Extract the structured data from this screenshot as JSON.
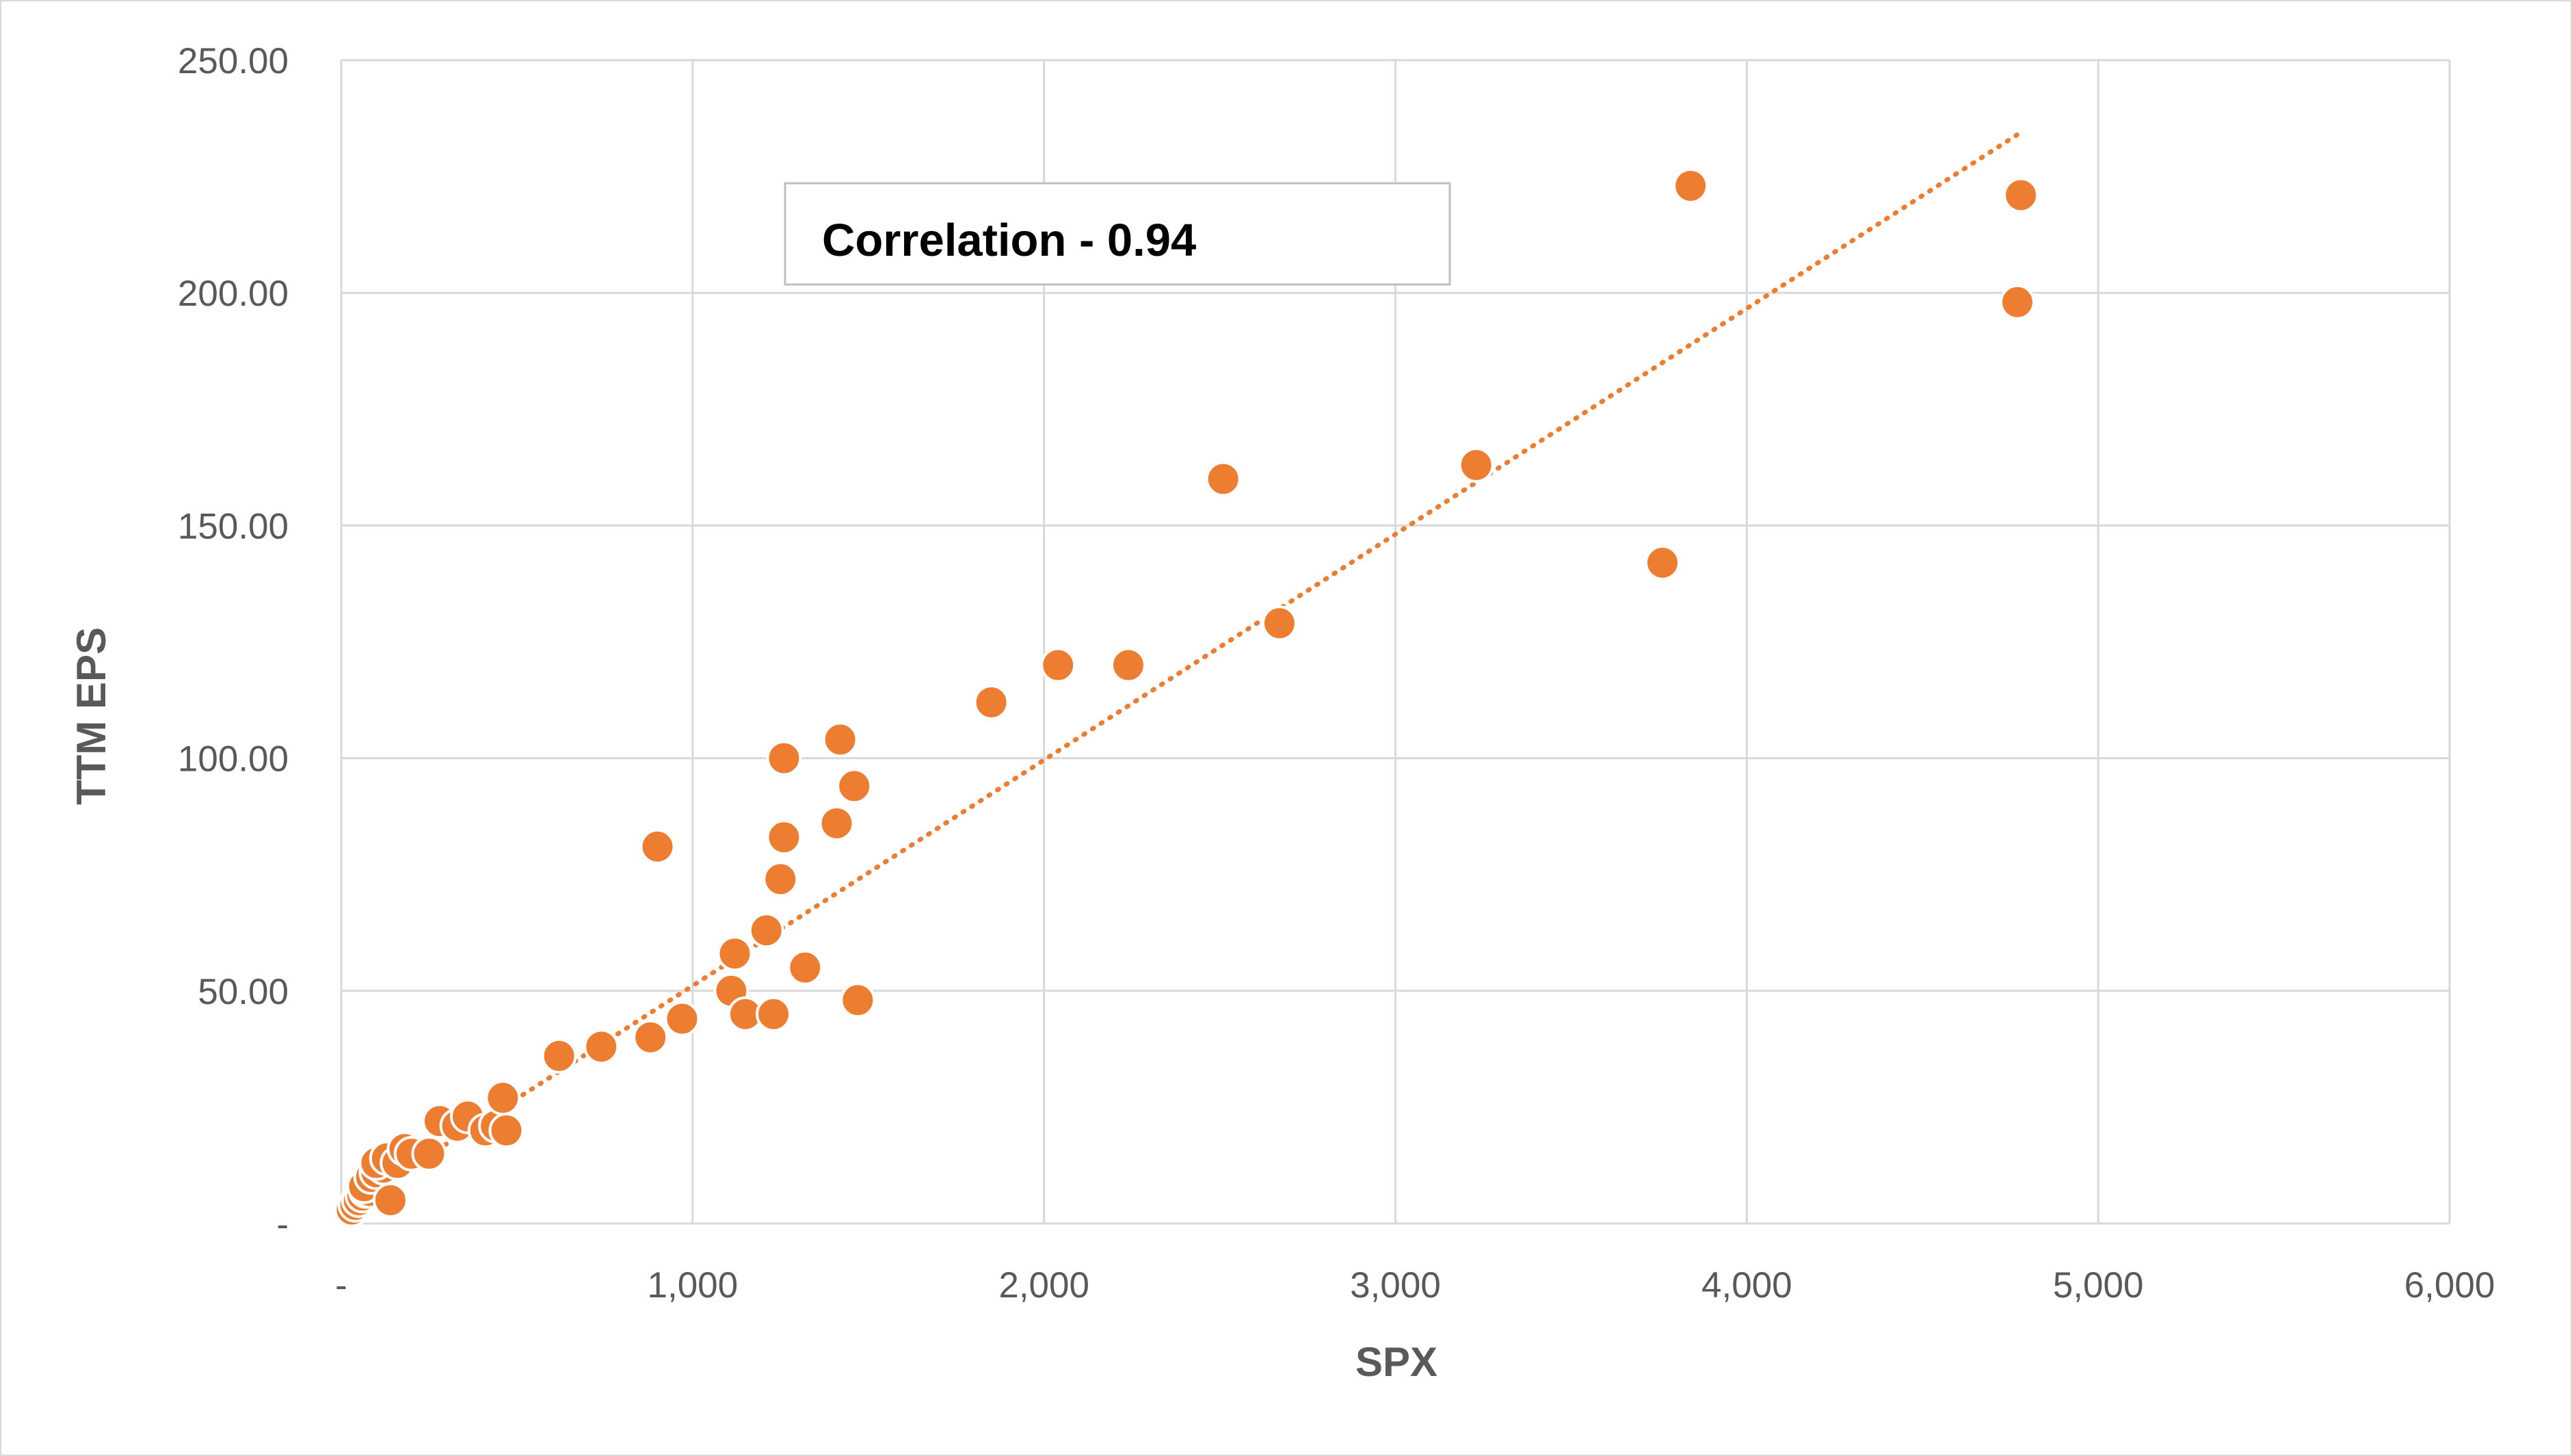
{
  "chart_data": {
    "type": "scatter",
    "title": "",
    "xlabel": "SPX",
    "ylabel": "TTM EPS",
    "xlim": [
      0,
      6000
    ],
    "ylim": [
      0,
      250
    ],
    "x_ticks": [
      0,
      1000,
      2000,
      3000,
      4000,
      5000,
      6000
    ],
    "x_tick_labels": [
      "-",
      "1,000",
      "2,000",
      "3,000",
      "4,000",
      "5,000",
      "6,000"
    ],
    "y_ticks": [
      0,
      50,
      100,
      150,
      200,
      250
    ],
    "y_tick_labels": [
      "-",
      "50.00",
      "100.00",
      "150.00",
      "200.00",
      "250.00"
    ],
    "grid": true,
    "legend": "none",
    "marker_color": "#ED7D31",
    "trendline": {
      "type": "linear",
      "style": "dotted",
      "color": "#ED7D31",
      "from": [
        50,
        5
      ],
      "to": [
        4770,
        234
      ]
    },
    "annotation": {
      "text": "Correlation - 0.94"
    },
    "series": [
      {
        "values": [
          [
            30,
            3
          ],
          [
            40,
            4
          ],
          [
            50,
            5
          ],
          [
            60,
            6
          ],
          [
            70,
            7
          ],
          [
            80,
            7
          ],
          [
            65,
            8
          ],
          [
            85,
            10
          ],
          [
            100,
            11
          ],
          [
            120,
            12
          ],
          [
            100,
            13
          ],
          [
            130,
            14
          ],
          [
            160,
            13
          ],
          [
            140,
            5
          ],
          [
            180,
            16
          ],
          [
            200,
            15
          ],
          [
            250,
            15
          ],
          [
            280,
            22
          ],
          [
            330,
            21
          ],
          [
            360,
            23
          ],
          [
            410,
            20
          ],
          [
            440,
            21
          ],
          [
            460,
            27
          ],
          [
            470,
            20
          ],
          [
            620,
            36
          ],
          [
            740,
            38
          ],
          [
            880,
            40
          ],
          [
            900,
            81
          ],
          [
            970,
            44
          ],
          [
            1110,
            50
          ],
          [
            1120,
            58
          ],
          [
            1150,
            45
          ],
          [
            1210,
            63
          ],
          [
            1230,
            45
          ],
          [
            1250,
            74
          ],
          [
            1260,
            83
          ],
          [
            1260,
            100
          ],
          [
            1320,
            55
          ],
          [
            1410,
            86
          ],
          [
            1420,
            104
          ],
          [
            1460,
            94
          ],
          [
            1470,
            48
          ],
          [
            1850,
            112
          ],
          [
            2040,
            120
          ],
          [
            2240,
            120
          ],
          [
            2510,
            160
          ],
          [
            2670,
            129
          ],
          [
            3230,
            163
          ],
          [
            3760,
            142
          ],
          [
            3840,
            223
          ],
          [
            4770,
            198
          ],
          [
            4780,
            221
          ]
        ]
      }
    ]
  }
}
